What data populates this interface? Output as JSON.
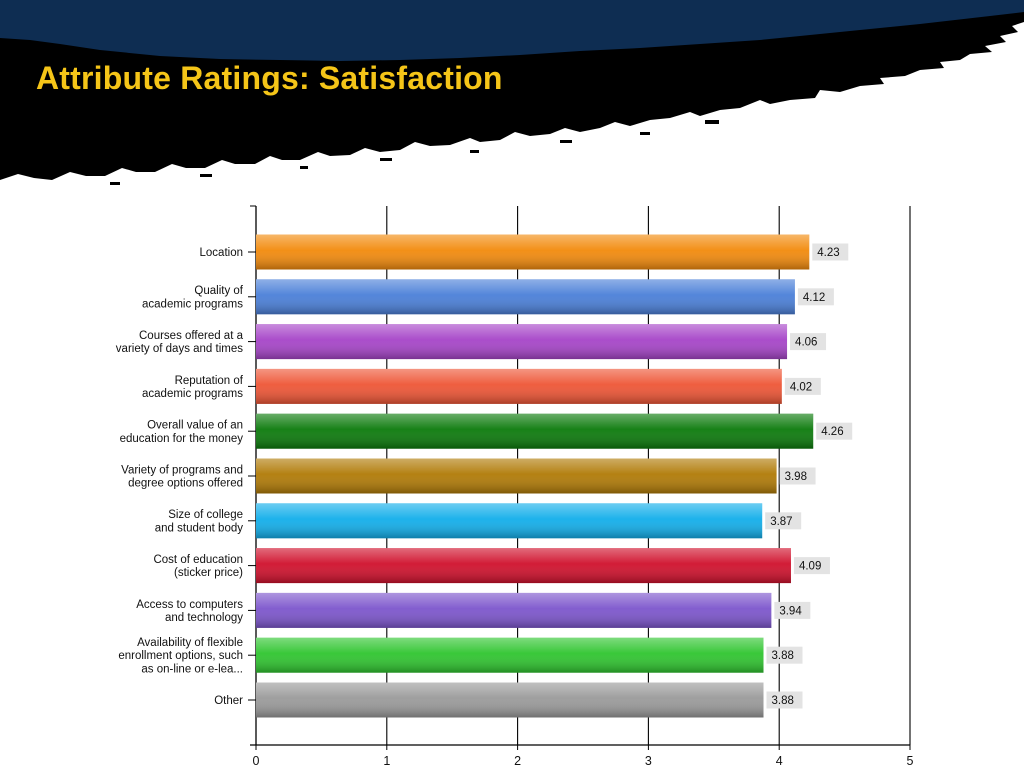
{
  "slide": {
    "title": "Attribute Ratings:  Satisfaction"
  },
  "colors": {
    "header_band": "#0e2d52",
    "header_brush": "#000000",
    "title": "#f5c518",
    "label_box": "#e3e3e3"
  },
  "chart_data": {
    "type": "bar",
    "orientation": "horizontal",
    "title": "",
    "xlabel": "",
    "ylabel": "",
    "xlim": [
      0,
      5
    ],
    "ticks": [
      "0",
      "1",
      "2",
      "3",
      "4",
      "5"
    ],
    "grid": true,
    "legend": "none",
    "categories": [
      [
        "Location"
      ],
      [
        "Quality of",
        "academic programs"
      ],
      [
        "Courses offered at a",
        "variety of days and times"
      ],
      [
        "Reputation of",
        "academic programs"
      ],
      [
        "Overall value of an",
        "education for the money"
      ],
      [
        "Variety of programs and",
        "degree options offered"
      ],
      [
        "Size of college",
        "and student body"
      ],
      [
        "Cost of education",
        "(sticker price)"
      ],
      [
        "Access to computers",
        "and technology"
      ],
      [
        "Availability of flexible",
        "enrollment options, such",
        "as on-line or e-lea..."
      ],
      [
        "Other"
      ]
    ],
    "values": [
      4.23,
      4.12,
      4.06,
      4.02,
      4.26,
      3.98,
      3.87,
      4.09,
      3.94,
      3.88,
      3.88
    ],
    "value_labels": [
      "4.23",
      "4.12",
      "4.06",
      "4.02",
      "4.26",
      "3.98",
      "3.87",
      "4.09",
      "3.94",
      "3.88",
      "3.88"
    ],
    "bar_colors": [
      "#f28a0c",
      "#4a7fd8",
      "#a644c8",
      "#ee5535",
      "#0b7a0b",
      "#b07a06",
      "#12aeea",
      "#d0102c",
      "#7c55cc",
      "#2fc52f",
      "#9a9a9a"
    ]
  }
}
